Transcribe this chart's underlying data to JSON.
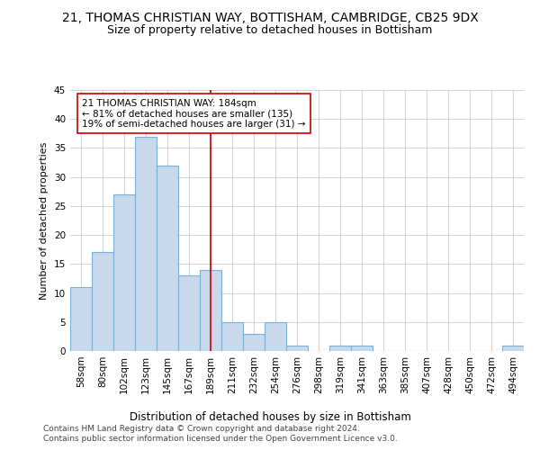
{
  "title1": "21, THOMAS CHRISTIAN WAY, BOTTISHAM, CAMBRIDGE, CB25 9DX",
  "title2": "Size of property relative to detached houses in Bottisham",
  "xlabel": "Distribution of detached houses by size in Bottisham",
  "ylabel": "Number of detached properties",
  "footnote1": "Contains HM Land Registry data © Crown copyright and database right 2024.",
  "footnote2": "Contains public sector information licensed under the Open Government Licence v3.0.",
  "bar_labels": [
    "58sqm",
    "80sqm",
    "102sqm",
    "123sqm",
    "145sqm",
    "167sqm",
    "189sqm",
    "211sqm",
    "232sqm",
    "254sqm",
    "276sqm",
    "298sqm",
    "319sqm",
    "341sqm",
    "363sqm",
    "385sqm",
    "407sqm",
    "428sqm",
    "450sqm",
    "472sqm",
    "494sqm"
  ],
  "bar_values": [
    11,
    17,
    27,
    37,
    32,
    13,
    14,
    5,
    3,
    5,
    1,
    0,
    1,
    1,
    0,
    0,
    0,
    0,
    0,
    0,
    1
  ],
  "bar_color": "#c9d9ec",
  "bar_edgecolor": "#7bafd4",
  "ylim": [
    0,
    45
  ],
  "yticks": [
    0,
    5,
    10,
    15,
    20,
    25,
    30,
    35,
    40,
    45
  ],
  "vline_x": 6,
  "vline_color": "#cc0000",
  "annotation_line1": "21 THOMAS CHRISTIAN WAY: 184sqm",
  "annotation_line2": "← 81% of detached houses are smaller (135)",
  "annotation_line3": "19% of semi-detached houses are larger (31) →",
  "background_color": "#ffffff",
  "grid_color": "#cccccc",
  "title1_fontsize": 10,
  "title2_fontsize": 9,
  "xlabel_fontsize": 8.5,
  "ylabel_fontsize": 8,
  "tick_fontsize": 7.5,
  "annotation_fontsize": 7.5,
  "footnote_fontsize": 6.5
}
